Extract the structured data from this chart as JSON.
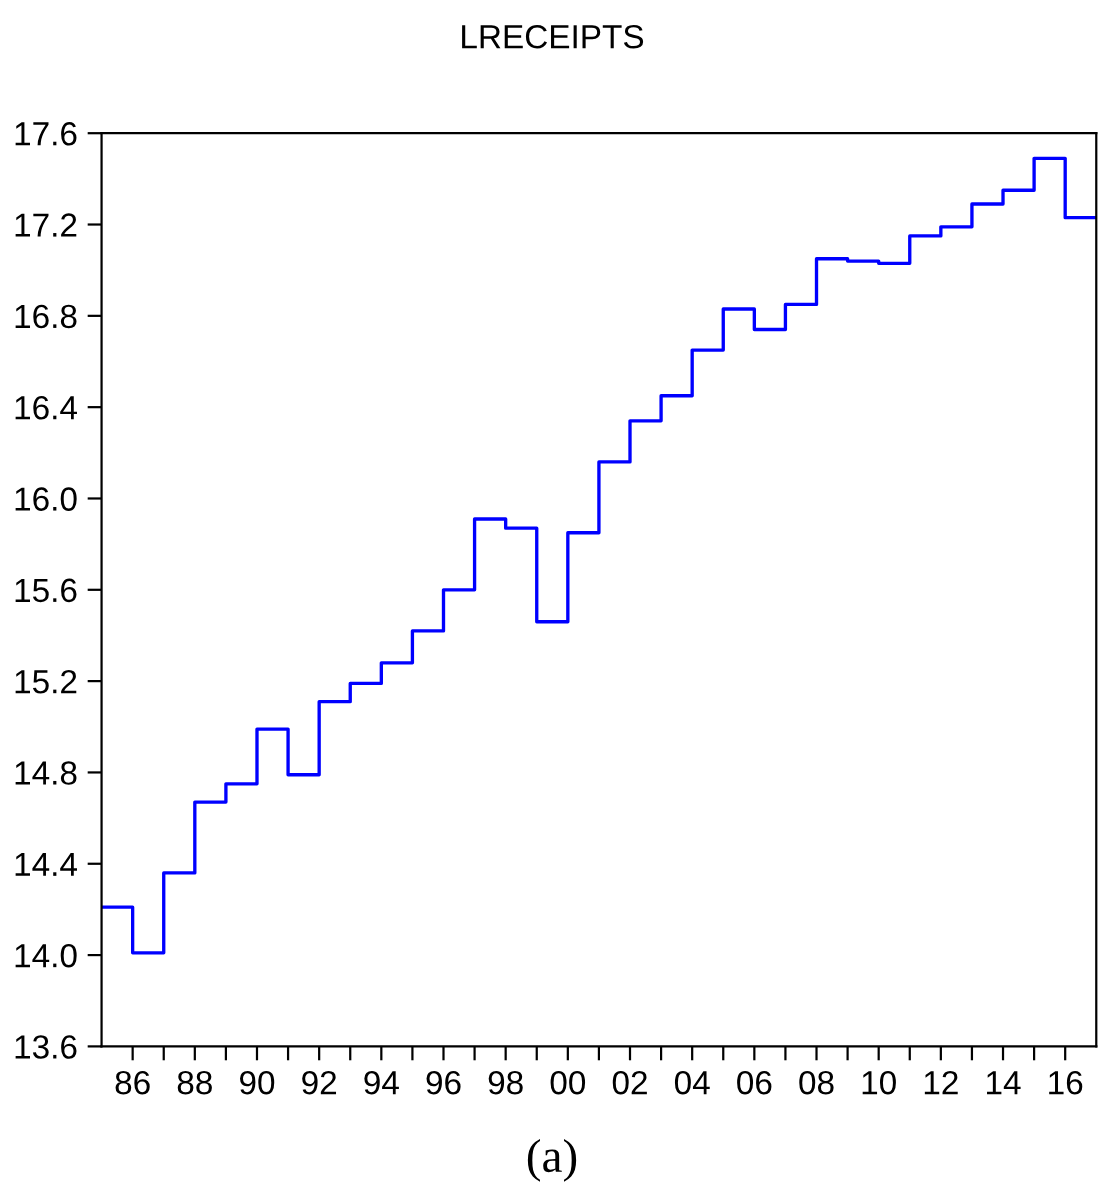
{
  "chart_data": {
    "type": "step",
    "title": "LRECEIPTS",
    "annotations": [
      "(a)"
    ],
    "x": [
      1985,
      1986,
      1987,
      1988,
      1989,
      1990,
      1991,
      1992,
      1993,
      1994,
      1995,
      1996,
      1997,
      1998,
      1999,
      2000,
      2001,
      2002,
      2003,
      2004,
      2005,
      2006,
      2007,
      2008,
      2009,
      2010,
      2011,
      2012,
      2013,
      2014,
      2015,
      2016,
      2017
    ],
    "series": [
      {
        "color": "#0000ff",
        "values": [
          14.21,
          14.01,
          14.36,
          14.67,
          14.75,
          14.99,
          14.79,
          15.11,
          15.19,
          15.28,
          15.42,
          15.6,
          15.91,
          15.87,
          15.46,
          15.85,
          16.16,
          16.34,
          16.45,
          16.65,
          16.83,
          16.74,
          16.85,
          17.05,
          17.04,
          17.03,
          17.15,
          17.19,
          17.29,
          17.35,
          17.49,
          17.23,
          17.23
        ]
      }
    ],
    "xlim": [
      1985,
      2017
    ],
    "xticks": [
      {
        "value": 1986,
        "label": "86"
      },
      {
        "value": 1987,
        "label": null
      },
      {
        "value": 1988,
        "label": "88"
      },
      {
        "value": 1989,
        "label": null
      },
      {
        "value": 1990,
        "label": "90"
      },
      {
        "value": 1991,
        "label": null
      },
      {
        "value": 1992,
        "label": "92"
      },
      {
        "value": 1993,
        "label": null
      },
      {
        "value": 1994,
        "label": "94"
      },
      {
        "value": 1995,
        "label": null
      },
      {
        "value": 1996,
        "label": "96"
      },
      {
        "value": 1997,
        "label": null
      },
      {
        "value": 1998,
        "label": "98"
      },
      {
        "value": 1999,
        "label": null
      },
      {
        "value": 2000,
        "label": "00"
      },
      {
        "value": 2001,
        "label": null
      },
      {
        "value": 2002,
        "label": "02"
      },
      {
        "value": 2003,
        "label": null
      },
      {
        "value": 2004,
        "label": "04"
      },
      {
        "value": 2005,
        "label": null
      },
      {
        "value": 2006,
        "label": "06"
      },
      {
        "value": 2007,
        "label": null
      },
      {
        "value": 2008,
        "label": "08"
      },
      {
        "value": 2009,
        "label": null
      },
      {
        "value": 2010,
        "label": "10"
      },
      {
        "value": 2011,
        "label": null
      },
      {
        "value": 2012,
        "label": "12"
      },
      {
        "value": 2013,
        "label": null
      },
      {
        "value": 2014,
        "label": "14"
      },
      {
        "value": 2015,
        "label": null
      },
      {
        "value": 2016,
        "label": "16"
      }
    ],
    "ylim": [
      13.6,
      17.6
    ],
    "yticks": [
      {
        "value": 13.6,
        "label": "13.6"
      },
      {
        "value": 14.0,
        "label": "14.0"
      },
      {
        "value": 14.4,
        "label": "14.4"
      },
      {
        "value": 14.8,
        "label": "14.8"
      },
      {
        "value": 15.2,
        "label": "15.2"
      },
      {
        "value": 15.6,
        "label": "15.6"
      },
      {
        "value": 16.0,
        "label": "16.0"
      },
      {
        "value": 16.4,
        "label": "16.4"
      },
      {
        "value": 16.8,
        "label": "16.8"
      },
      {
        "value": 17.2,
        "label": "17.2"
      },
      {
        "value": 17.6,
        "label": "17.6"
      }
    ],
    "grid": false
  }
}
